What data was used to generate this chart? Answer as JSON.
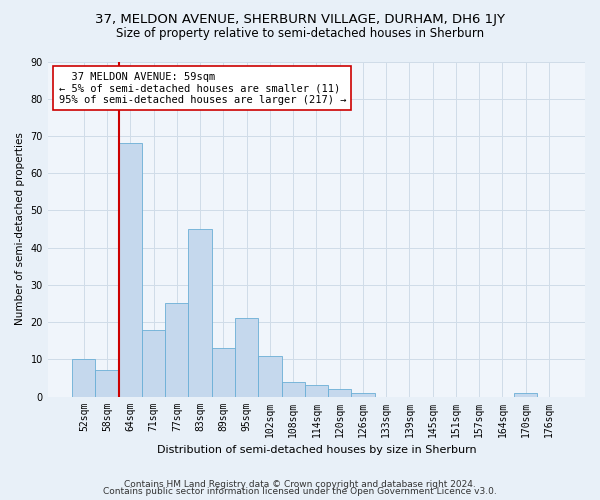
{
  "title": "37, MELDON AVENUE, SHERBURN VILLAGE, DURHAM, DH6 1JY",
  "subtitle": "Size of property relative to semi-detached houses in Sherburn",
  "xlabel": "Distribution of semi-detached houses by size in Sherburn",
  "ylabel": "Number of semi-detached properties",
  "categories": [
    "52sqm",
    "58sqm",
    "64sqm",
    "71sqm",
    "77sqm",
    "83sqm",
    "89sqm",
    "95sqm",
    "102sqm",
    "108sqm",
    "114sqm",
    "120sqm",
    "126sqm",
    "133sqm",
    "139sqm",
    "145sqm",
    "151sqm",
    "157sqm",
    "164sqm",
    "170sqm",
    "176sqm"
  ],
  "values": [
    10,
    7,
    68,
    18,
    25,
    45,
    13,
    21,
    11,
    4,
    3,
    2,
    1,
    0,
    0,
    0,
    0,
    0,
    0,
    1,
    0
  ],
  "bar_color": "#c5d8ed",
  "bar_edge_color": "#6aaed6",
  "vline_x_index": 1,
  "vline_color": "#cc0000",
  "annotation_line1": "  37 MELDON AVENUE: 59sqm",
  "annotation_line2": "← 5% of semi-detached houses are smaller (11)",
  "annotation_line3": "95% of semi-detached houses are larger (217) →",
  "ylim": [
    0,
    90
  ],
  "yticks": [
    0,
    10,
    20,
    30,
    40,
    50,
    60,
    70,
    80,
    90
  ],
  "footer_line1": "Contains HM Land Registry data © Crown copyright and database right 2024.",
  "footer_line2": "Contains public sector information licensed under the Open Government Licence v3.0.",
  "bg_color": "#e8f0f8",
  "plot_bg_color": "#f0f5fb",
  "grid_color": "#d0dce8",
  "title_fontsize": 9.5,
  "subtitle_fontsize": 8.5,
  "xlabel_fontsize": 8,
  "ylabel_fontsize": 7.5,
  "tick_fontsize": 7,
  "annotation_fontsize": 7.5,
  "footer_fontsize": 6.5
}
